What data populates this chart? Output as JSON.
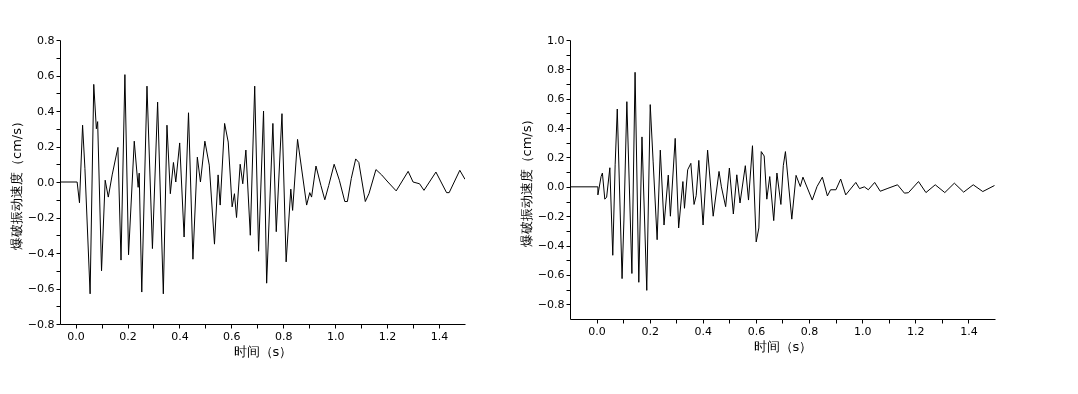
{
  "chart_data": [
    {
      "type": "line",
      "xlabel": "时间（s）",
      "ylabel": "爆破振动速度（cm/s）",
      "xlim": [
        -0.06,
        1.5
      ],
      "ylim": [
        -0.8,
        0.8
      ],
      "xticks": [
        {
          "value": 0,
          "label": "0.0"
        },
        {
          "value": 0.1,
          "label": null
        },
        0.2,
        {
          "value": 0.3,
          "label": null
        },
        0.4,
        {
          "value": 0.5,
          "label": null
        },
        0.6,
        {
          "value": 0.7,
          "label": null
        },
        0.8,
        {
          "value": 0.9,
          "label": null
        },
        {
          "value": 1.0,
          "label": "1.0"
        },
        {
          "value": 1.1,
          "label": null
        },
        1.2,
        {
          "value": 1.3,
          "label": null
        },
        1.4
      ],
      "yticks": [
        -0.8,
        {
          "value": -0.7,
          "label": null
        },
        -0.6,
        {
          "value": -0.5,
          "label": null
        },
        -0.4,
        {
          "value": -0.3,
          "label": null
        },
        -0.2,
        {
          "value": -0.1,
          "label": null
        },
        {
          "value": 0,
          "label": "0.0"
        },
        {
          "value": 0.1,
          "label": null
        },
        0.2,
        {
          "value": 0.3,
          "label": null
        },
        0.4,
        {
          "value": 0.5,
          "label": null
        },
        0.6,
        {
          "value": 0.7,
          "label": null
        },
        0.8
      ],
      "series": [
        {
          "color": "#000000",
          "x": [
            -0.06,
            0.006,
            0.015,
            0.027,
            0.036,
            0.056,
            0.07,
            0.08,
            0.085,
            0.1,
            0.114,
            0.126,
            0.141,
            0.163,
            0.175,
            0.19,
            0.204,
            0.226,
            0.241,
            0.245,
            0.255,
            0.275,
            0.296,
            0.316,
            0.338,
            0.352,
            0.365,
            0.377,
            0.386,
            0.401,
            0.418,
            0.435,
            0.452,
            0.469,
            0.481,
            0.498,
            0.515,
            0.535,
            0.549,
            0.557,
            0.574,
            0.588,
            0.603,
            0.612,
            0.62,
            0.634,
            0.644,
            0.656,
            0.673,
            0.69,
            0.705,
            0.724,
            0.736,
            0.76,
            0.773,
            0.795,
            0.811,
            0.829,
            0.836,
            0.855,
            0.89,
            0.902,
            0.909,
            0.926,
            0.945,
            0.96,
            0.975,
            0.996,
            1.016,
            1.037,
            1.047,
            1.062,
            1.079,
            1.091,
            1.116,
            1.13,
            1.157,
            1.179,
            1.203,
            1.235,
            1.281,
            1.3,
            1.325,
            1.342,
            1.388,
            1.429,
            1.439,
            1.48,
            1.5
          ],
          "values": [
            0,
            0,
            -0.117,
            0.32,
            0.075,
            -0.63,
            0.55,
            0.3,
            0.34,
            -0.5,
            0.01,
            -0.085,
            0.04,
            0.195,
            -0.44,
            0.605,
            -0.41,
            0.23,
            -0.03,
            0.05,
            -0.62,
            0.54,
            -0.375,
            0.45,
            -0.63,
            0.32,
            -0.066,
            0.11,
            0,
            0.22,
            -0.31,
            0.39,
            -0.435,
            0.14,
            0,
            0.23,
            0.095,
            -0.35,
            0.04,
            -0.13,
            0.33,
            0.225,
            -0.14,
            -0.066,
            -0.2,
            0.1,
            -0.01,
            0.18,
            -0.3,
            0.54,
            -0.39,
            0.4,
            -0.57,
            0.33,
            -0.28,
            0.385,
            -0.45,
            -0.04,
            -0.16,
            0.24,
            -0.13,
            -0.06,
            -0.085,
            0.09,
            -0.02,
            -0.1,
            -0.02,
            0.1,
            0.01,
            -0.11,
            -0.11,
            0.02,
            0.13,
            0.11,
            -0.11,
            -0.066,
            0.07,
            0.04,
            0,
            -0.05,
            0.06,
            0,
            -0.01,
            -0.047,
            0.056,
            -0.06,
            -0.06,
            0.066,
            0.015
          ]
        }
      ]
    },
    {
      "type": "line",
      "xlabel": "时间（s）",
      "ylabel": "爆破振动速度（cm/s）",
      "xlim": [
        -0.1,
        1.5
      ],
      "ylim": [
        -0.9,
        1.0
      ],
      "xticks": [
        {
          "value": 0,
          "label": "0.0"
        },
        {
          "value": 0.1,
          "label": null
        },
        0.2,
        {
          "value": 0.3,
          "label": null
        },
        0.4,
        {
          "value": 0.5,
          "label": null
        },
        0.6,
        {
          "value": 0.7,
          "label": null
        },
        0.8,
        {
          "value": 0.9,
          "label": null
        },
        {
          "value": 1.0,
          "label": "1.0"
        },
        {
          "value": 1.1,
          "label": null
        },
        1.2,
        {
          "value": 1.3,
          "label": null
        },
        1.4
      ],
      "yticks": [
        -0.8,
        {
          "value": -0.7,
          "label": null
        },
        -0.6,
        {
          "value": -0.5,
          "label": null
        },
        -0.4,
        {
          "value": -0.3,
          "label": null
        },
        -0.2,
        {
          "value": -0.1,
          "label": null
        },
        {
          "value": 0,
          "label": "0.0"
        },
        {
          "value": 0.1,
          "label": null
        },
        0.2,
        {
          "value": 0.3,
          "label": null
        },
        0.4,
        {
          "value": 0.5,
          "label": null
        },
        0.6,
        {
          "value": 0.7,
          "label": null
        },
        0.8,
        {
          "value": 0.9,
          "label": null
        },
        {
          "value": 1.0,
          "label": "1.0"
        }
      ],
      "series": [
        {
          "color": "#000000",
          "x": [
            -0.1,
            0.005,
            0.005,
            0.017,
            0.022,
            0.031,
            0.038,
            0.05,
            0.061,
            0.07,
            0.078,
            0.096,
            0.103,
            0.114,
            0.133,
            0.145,
            0.159,
            0.171,
            0.189,
            0.202,
            0.213,
            0.228,
            0.24,
            0.254,
            0.27,
            0.278,
            0.296,
            0.309,
            0.325,
            0.331,
            0.343,
            0.355,
            0.367,
            0.375,
            0.385,
            0.401,
            0.418,
            0.439,
            0.461,
            0.47,
            0.486,
            0.5,
            0.515,
            0.528,
            0.54,
            0.56,
            0.572,
            0.587,
            0.601,
            0.611,
            0.62,
            0.631,
            0.641,
            0.652,
            0.667,
            0.679,
            0.694,
            0.703,
            0.711,
            0.735,
            0.751,
            0.767,
            0.777,
            0.812,
            0.83,
            0.85,
            0.869,
            0.881,
            0.901,
            0.919,
            0.938,
            0.976,
            0.99,
            1.008,
            1.023,
            1.047,
            1.068,
            1.097,
            1.133,
            1.159,
            1.174,
            1.212,
            1.24,
            1.275,
            1.311,
            1.347,
            1.382,
            1.418,
            1.454,
            1.498
          ],
          "values": [
            0,
            0,
            -0.055,
            0.07,
            0.094,
            -0.084,
            -0.07,
            0.13,
            -0.466,
            0.15,
            0.53,
            -0.625,
            -0.226,
            0.58,
            -0.59,
            0.78,
            -0.65,
            0.34,
            -0.705,
            0.56,
            0.17,
            -0.36,
            0.25,
            -0.26,
            0.08,
            -0.2,
            0.33,
            -0.28,
            0.036,
            -0.146,
            0.116,
            0.16,
            -0.12,
            -0.06,
            0.18,
            -0.26,
            0.25,
            -0.2,
            0.105,
            0,
            -0.135,
            0.128,
            -0.185,
            0.082,
            -0.11,
            0.144,
            -0.09,
            0.28,
            -0.375,
            -0.28,
            0.24,
            0.21,
            -0.084,
            0.07,
            -0.23,
            0.094,
            -0.12,
            0.144,
            0.24,
            -0.22,
            0.078,
            0.002,
            0.066,
            -0.09,
            0.002,
            0.066,
            -0.062,
            -0.02,
            -0.02,
            0.053,
            -0.055,
            0.03,
            -0.012,
            0,
            -0.02,
            0.03,
            -0.03,
            -0.01,
            0.014,
            -0.043,
            -0.04,
            0.036,
            -0.039,
            0.014,
            -0.039,
            0.025,
            -0.036,
            0.014,
            -0.032,
            0.009
          ]
        }
      ]
    }
  ]
}
